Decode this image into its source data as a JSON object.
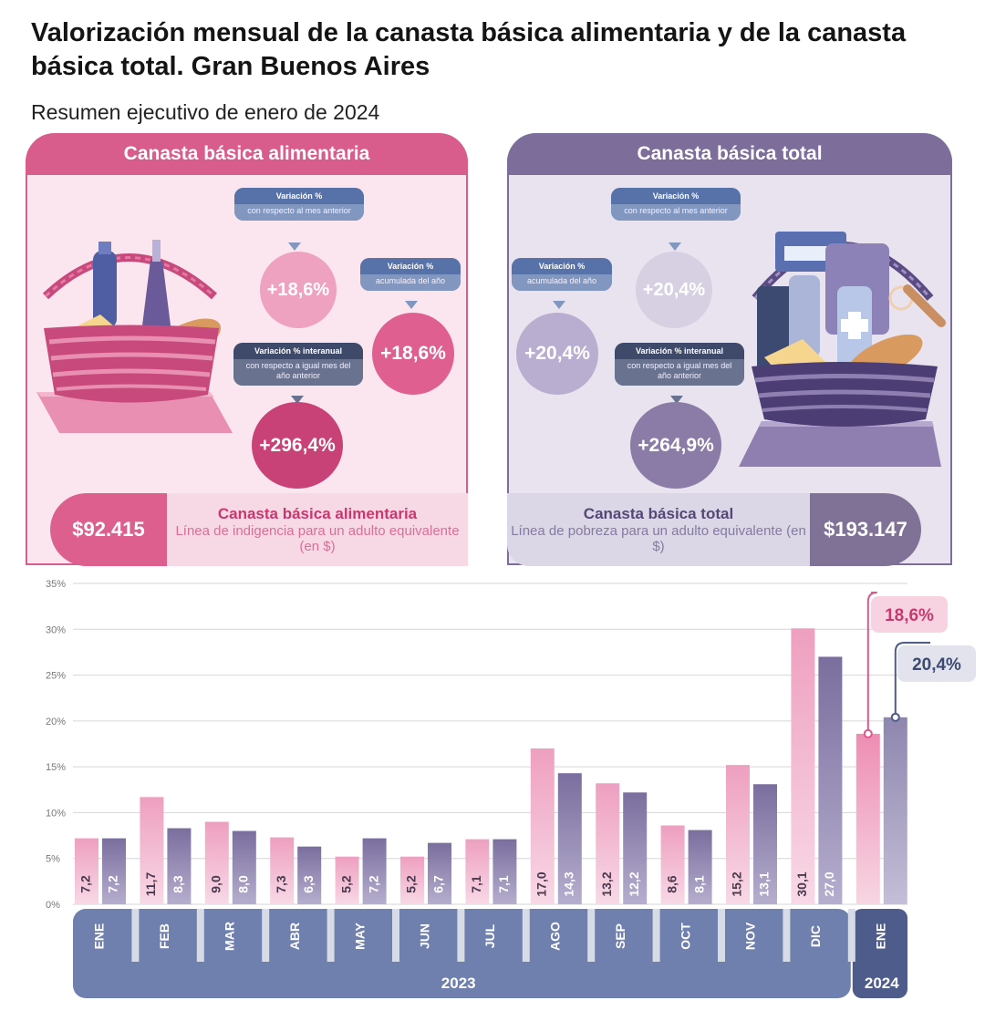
{
  "title": "Valorización mensual de la canasta básica alimentaria y de la canasta básica total. Gran Buenos Aires",
  "subtitle": "Resumen ejecutivo de enero de 2024",
  "colors": {
    "cba": "#e999b9",
    "cbt": "#7d6d9a",
    "cba_dark": "#d95d8c",
    "axis_band": "#6f7fae",
    "axis_band_2024": "#4d5c8a"
  },
  "panels": {
    "left": {
      "header": "Canasta básica alimentaria",
      "icon": "food-basket-icon",
      "tags": {
        "monthly": {
          "title": "Variación %",
          "body": "con respecto al mes anterior"
        },
        "accumulated": {
          "title": "Variación %",
          "body": "acumulada del año"
        },
        "interannual": {
          "title": "Variación % interanual",
          "body": "con respecto a igual mes del año anterior"
        }
      },
      "values": {
        "monthly": "+18,6%",
        "accumulated": "+18,6%",
        "interannual": "+296,4%"
      },
      "amount": "$92.415",
      "line_title": "Canasta básica alimentaria",
      "line_desc": "Línea de indigencia para un adulto equivalente (en $)"
    },
    "right": {
      "header": "Canasta básica total",
      "icon": "goods-basket-icon",
      "tags": {
        "accumulated": {
          "title": "Variación %",
          "body": "acumulada del año"
        },
        "monthly": {
          "title": "Variación %",
          "body": "con respecto al mes anterior"
        },
        "interannual": {
          "title": "Variación % interanual",
          "body": "con respecto a igual mes del año anterior"
        }
      },
      "values": {
        "accumulated": "+20,4%",
        "monthly": "+20,4%",
        "interannual": "+264,9%"
      },
      "amount": "$193.147",
      "line_title": "Canasta básica total",
      "line_desc": "Línea de pobreza para un adulto equivalente (en $)"
    }
  },
  "chart_data": {
    "type": "bar",
    "categories": [
      "ENE",
      "FEB",
      "MAR",
      "ABR",
      "MAY",
      "JUN",
      "JUL",
      "AGO",
      "SEP",
      "OCT",
      "NOV",
      "DIC",
      "ENE"
    ],
    "groups": [
      {
        "label": "2023",
        "from": 0,
        "to": 11
      },
      {
        "label": "2024",
        "from": 12,
        "to": 12
      }
    ],
    "series": [
      {
        "key": "cba",
        "values": [
          7.2,
          11.7,
          9.0,
          7.3,
          5.2,
          5.2,
          7.1,
          17.0,
          13.2,
          8.6,
          15.2,
          30.1,
          18.6
        ],
        "labels": [
          "7,2",
          "11,7",
          "9,0",
          "7,3",
          "5,2",
          "5,2",
          "7,1",
          "17,0",
          "13,2",
          "8,6",
          "15,2",
          "30,1",
          ""
        ]
      },
      {
        "key": "cbt",
        "values": [
          7.2,
          8.3,
          8.0,
          6.3,
          7.2,
          6.7,
          7.1,
          14.3,
          12.2,
          8.1,
          13.1,
          27.0,
          20.4
        ],
        "labels": [
          "7,2",
          "8,3",
          "8,0",
          "6,3",
          "7,2",
          "6,7",
          "7,1",
          "14,3",
          "12,2",
          "8,1",
          "13,1",
          "27,0",
          ""
        ]
      }
    ],
    "yticks": [
      "0%",
      "5%",
      "10%",
      "15%",
      "20%",
      "25%",
      "30%",
      "35%"
    ],
    "ylim": [
      0,
      35
    ],
    "callouts": {
      "cba": "18,6%",
      "cbt": "20,4%"
    },
    "grid": true
  }
}
